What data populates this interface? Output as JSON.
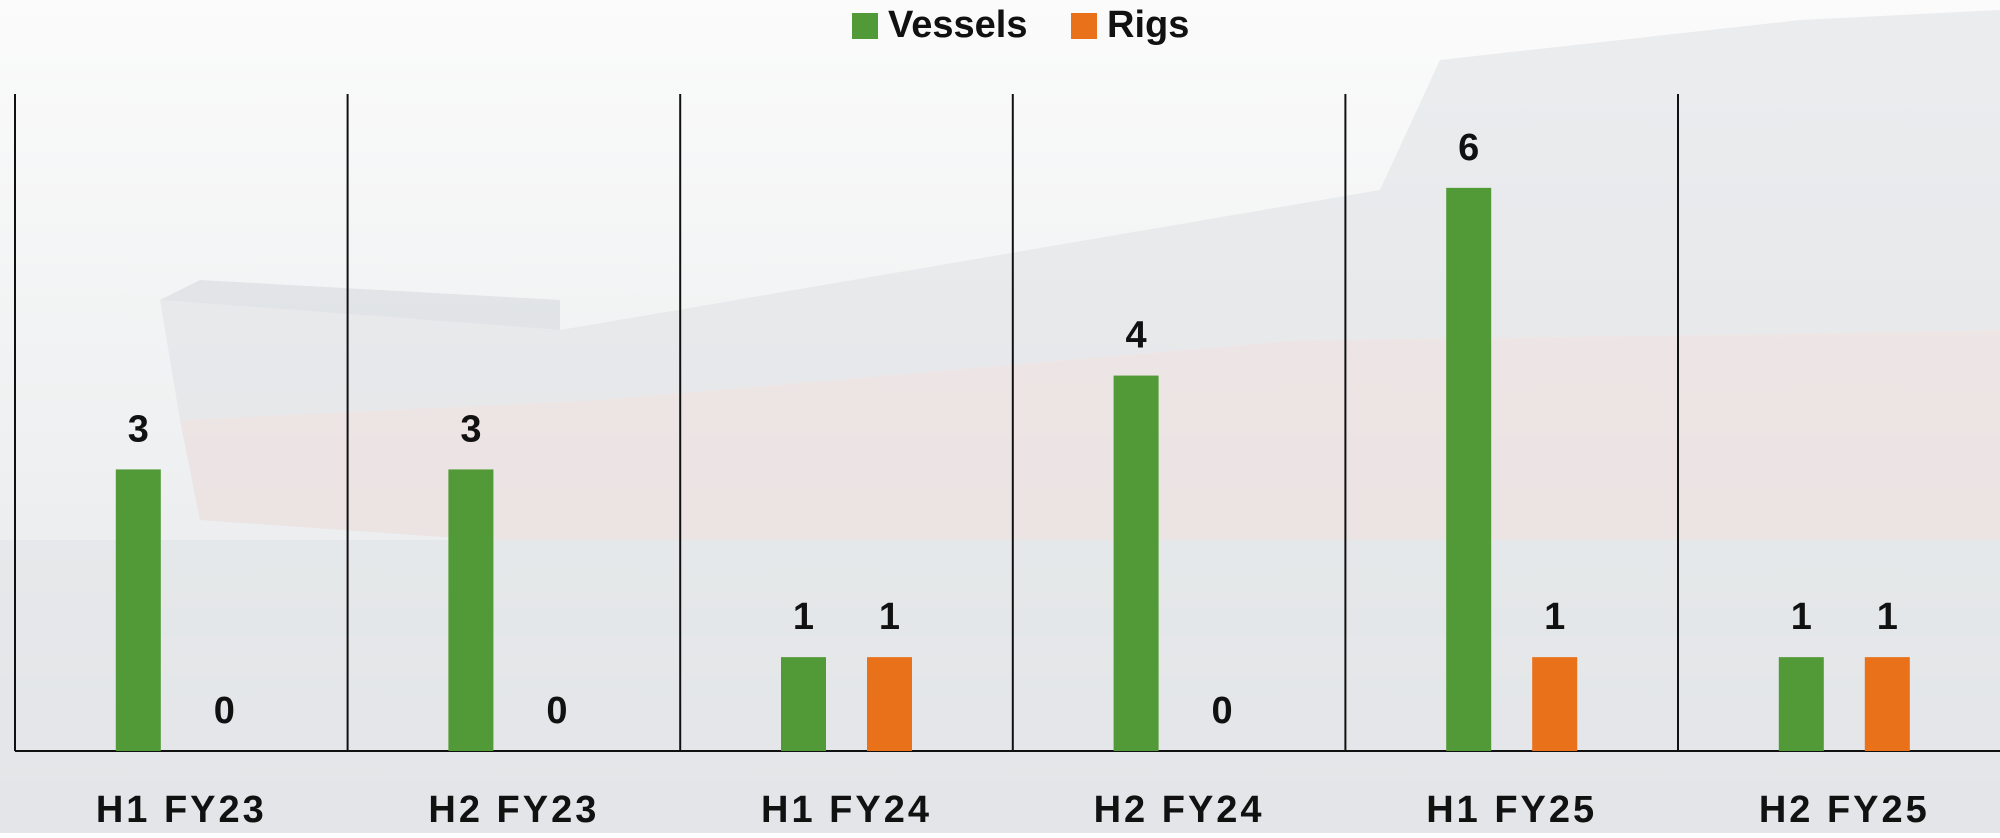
{
  "chart_data": {
    "type": "bar",
    "categories": [
      "H1 FY23",
      "H2 FY23",
      "H1 FY24",
      "H2 FY24",
      "H1 FY25",
      "H2 FY25"
    ],
    "series": [
      {
        "name": "Vessels",
        "color": "#529a37",
        "values": [
          3,
          3,
          1,
          4,
          6,
          1
        ]
      },
      {
        "name": "Rigs",
        "color": "#e8711a",
        "values": [
          0,
          0,
          1,
          0,
          1,
          1
        ]
      }
    ],
    "ylim": [
      0,
      7
    ]
  }
}
